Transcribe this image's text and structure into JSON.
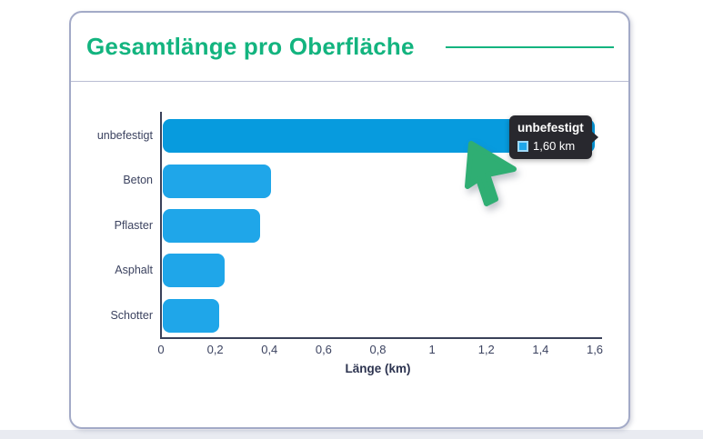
{
  "card": {
    "title": "Gesamtlänge pro Oberfläche"
  },
  "chart_data": {
    "type": "bar",
    "orientation": "horizontal",
    "title": "Gesamtlänge pro Oberfläche",
    "categories": [
      "unbefestigt",
      "Beton",
      "Pflaster",
      "Asphalt",
      "Schotter"
    ],
    "values": [
      1.6,
      0.4,
      0.36,
      0.23,
      0.21
    ],
    "unit": "km",
    "xlabel": "Länge (km)",
    "ylabel": "",
    "xlim": [
      0,
      1.6
    ],
    "xticks": {
      "values": [
        0,
        0.2,
        0.4,
        0.6,
        0.8,
        1,
        1.2,
        1.4,
        1.6
      ],
      "labels": [
        "0",
        "0,2",
        "0,4",
        "0,6",
        "0,8",
        "1",
        "1,2",
        "1,4",
        "1,6"
      ]
    },
    "grid": false,
    "legend_position": "none",
    "hovered_index": 0
  },
  "tooltip": {
    "title": "unbefestigt",
    "value": "1,60 km"
  },
  "cursor": {
    "icon": "green-pointer-cursor"
  },
  "colors": {
    "page_bg": "#ffffff",
    "bottom_strip": "#e9ebf1",
    "card_border": "#a3aac7",
    "divider": "#b9bdd3",
    "title_green": "#13b47f",
    "bar": "#1fa6e9",
    "bar_hover": "#079bde",
    "axis_line": "#3a4159",
    "axis_text": "#3c4360",
    "tooltip_bg": "#28282e",
    "tooltip_text": "#ffffff",
    "swatch_border": "#9fd9f8",
    "cursor_green": "#2fae73"
  }
}
